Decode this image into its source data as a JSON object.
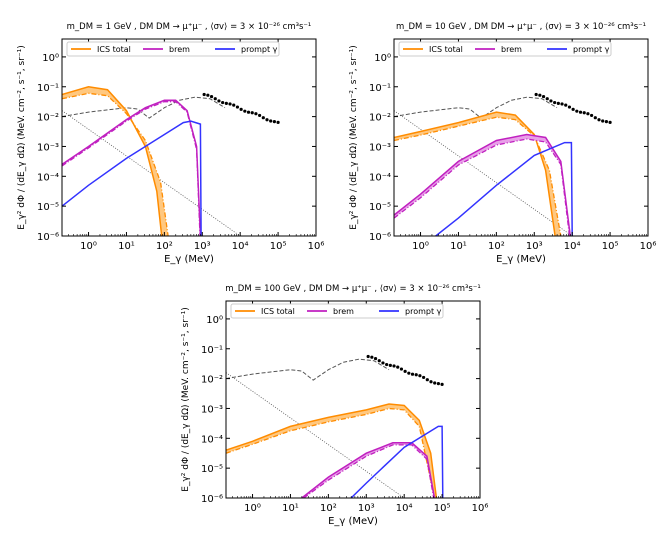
{
  "chart_data": [
    {
      "type": "line",
      "title": "m_DM = 1 GeV ,  DM DM → μ⁺μ⁻ ,  ⟨σv⟩ = 3 × 10⁻²⁶ cm³s⁻¹",
      "xlabel": "E_γ (MeV)",
      "ylabel": "E_γ² dΦ / (dE_γ dΩ) (MeV. cm⁻², s⁻¹, sr⁻¹)",
      "xscale": "log",
      "yscale": "log",
      "xlim_log10": [
        -0.7,
        6
      ],
      "ylim_log10": [
        -6,
        0.6
      ],
      "xticks": [
        "10⁰",
        "10¹",
        "10²",
        "10³",
        "10⁴",
        "10⁵",
        "10⁶"
      ],
      "yticks": [
        "10⁻⁶",
        "10⁻⁵",
        "10⁻⁴",
        "10⁻³",
        "10⁻²",
        "10⁻¹",
        "10⁰"
      ],
      "legend": {
        "placement": "top",
        "entries": [
          "ICS total",
          "brem",
          "prompt γ"
        ]
      },
      "series": [
        {
          "name": "ICS total",
          "band": true,
          "upper": [
            [
              -0.7,
              -1.26
            ],
            [
              0,
              -1
            ],
            [
              0.5,
              -1.1
            ],
            [
              1,
              -1.8
            ],
            [
              1.5,
              -3
            ],
            [
              1.8,
              -4.5
            ],
            [
              1.93,
              -6
            ]
          ],
          "lower": [
            [
              -0.7,
              -1.4
            ],
            [
              0,
              -1.22
            ],
            [
              0.5,
              -1.3
            ],
            [
              1,
              -1.9
            ],
            [
              1.5,
              -2.8
            ],
            [
              1.9,
              -4.2
            ],
            [
              2.1,
              -6
            ]
          ]
        },
        {
          "name": "brem",
          "band": true,
          "upper": [
            [
              -0.7,
              -3.6
            ],
            [
              0,
              -3.0
            ],
            [
              1,
              -2.1
            ],
            [
              1.5,
              -1.7
            ],
            [
              2,
              -1.45
            ],
            [
              2.3,
              -1.45
            ],
            [
              2.6,
              -1.8
            ],
            [
              2.85,
              -3
            ],
            [
              2.95,
              -6
            ]
          ],
          "lower": [
            [
              -0.7,
              -3.65
            ],
            [
              0,
              -3.05
            ],
            [
              1,
              -2.15
            ],
            [
              1.5,
              -1.75
            ],
            [
              2,
              -1.5
            ],
            [
              2.3,
              -1.5
            ],
            [
              2.6,
              -1.85
            ],
            [
              2.85,
              -3.1
            ],
            [
              2.94,
              -6
            ]
          ]
        },
        {
          "name": "prompt γ",
          "points": [
            [
              -0.7,
              -5
            ],
            [
              0,
              -4.3
            ],
            [
              1,
              -3.4
            ],
            [
              2,
              -2.6
            ],
            [
              2.5,
              -2.2
            ],
            [
              2.7,
              -2.15
            ],
            [
              2.95,
              -2.25
            ],
            [
              2.97,
              -6
            ]
          ]
        }
      ]
    },
    {
      "type": "line",
      "title": "m_DM = 10 GeV ,  DM DM → μ⁺μ⁻ ,  ⟨σv⟩ = 3 × 10⁻²⁶ cm³s⁻¹",
      "xlabel": "E_γ (MeV)",
      "ylabel": "E_γ² dΦ / (dE_γ dΩ) (MeV. cm⁻², s⁻¹, sr⁻¹)",
      "xscale": "log",
      "yscale": "log",
      "xlim_log10": [
        -0.7,
        6
      ],
      "ylim_log10": [
        -6,
        0.6
      ],
      "xticks": [
        "10⁰",
        "10¹",
        "10²",
        "10³",
        "10⁴",
        "10⁵",
        "10⁶"
      ],
      "yticks": [
        "10⁻⁶",
        "10⁻⁵",
        "10⁻⁴",
        "10⁻³",
        "10⁻²",
        "10⁻¹",
        "10⁰"
      ],
      "legend": {
        "placement": "top",
        "entries": [
          "ICS total",
          "brem",
          "prompt γ"
        ]
      },
      "series": [
        {
          "name": "ICS total",
          "band": true,
          "upper": [
            [
              -0.7,
              -2.7
            ],
            [
              0,
              -2.5
            ],
            [
              1,
              -2.2
            ],
            [
              2,
              -1.85
            ],
            [
              2.5,
              -1.95
            ],
            [
              3,
              -2.6
            ],
            [
              3.3,
              -3.8
            ],
            [
              3.55,
              -6
            ]
          ],
          "lower": [
            [
              -0.7,
              -2.8
            ],
            [
              0,
              -2.62
            ],
            [
              1,
              -2.32
            ],
            [
              2,
              -2.02
            ],
            [
              2.5,
              -2.1
            ],
            [
              3,
              -2.65
            ],
            [
              3.4,
              -3.8
            ],
            [
              3.7,
              -6
            ]
          ]
        },
        {
          "name": "brem",
          "band": true,
          "upper": [
            [
              -0.7,
              -5.3
            ],
            [
              0,
              -4.6
            ],
            [
              1,
              -3.5
            ],
            [
              2,
              -2.8
            ],
            [
              2.8,
              -2.6
            ],
            [
              3.3,
              -2.7
            ],
            [
              3.7,
              -3.5
            ],
            [
              3.95,
              -6
            ]
          ],
          "lower": [
            [
              -0.7,
              -5.4
            ],
            [
              0,
              -4.72
            ],
            [
              1,
              -3.62
            ],
            [
              2,
              -2.95
            ],
            [
              2.8,
              -2.75
            ],
            [
              3.3,
              -2.85
            ],
            [
              3.7,
              -3.6
            ],
            [
              3.93,
              -6
            ]
          ]
        },
        {
          "name": "prompt γ",
          "points": [
            [
              0.4,
              -6
            ],
            [
              1,
              -5.4
            ],
            [
              2,
              -4.3
            ],
            [
              3,
              -3.3
            ],
            [
              3.8,
              -2.87
            ],
            [
              3.98,
              -2.87
            ],
            [
              4,
              -6
            ]
          ]
        }
      ]
    },
    {
      "type": "line",
      "title": "m_DM = 100 GeV ,  DM DM → μ⁺μ⁻ ,  ⟨σv⟩ = 3 × 10⁻²⁶ cm³s⁻¹",
      "xlabel": "E_γ (MeV)",
      "ylabel": "E_γ² dΦ / (dE_γ dΩ) (MeV. cm⁻², s⁻¹, sr⁻¹)",
      "xscale": "log",
      "yscale": "log",
      "xlim_log10": [
        -0.7,
        6
      ],
      "ylim_log10": [
        -6,
        0.6
      ],
      "xticks": [
        "10⁰",
        "10¹",
        "10²",
        "10³",
        "10⁴",
        "10⁵",
        "10⁶"
      ],
      "yticks": [
        "10⁻⁶",
        "10⁻⁵",
        "10⁻⁴",
        "10⁻³",
        "10⁻²",
        "10⁻¹",
        "10⁰"
      ],
      "legend": {
        "placement": "top",
        "entries": [
          "ICS total",
          "brem",
          "prompt γ"
        ]
      },
      "series": [
        {
          "name": "ICS total",
          "band": true,
          "upper": [
            [
              -0.7,
              -4.4
            ],
            [
              0,
              -4.1
            ],
            [
              1,
              -3.6
            ],
            [
              2,
              -3.3
            ],
            [
              3,
              -3.05
            ],
            [
              3.6,
              -2.85
            ],
            [
              4,
              -2.9
            ],
            [
              4.4,
              -3.4
            ],
            [
              4.7,
              -4.5
            ],
            [
              4.85,
              -6
            ]
          ],
          "lower": [
            [
              -0.7,
              -4.5
            ],
            [
              0,
              -4.2
            ],
            [
              1,
              -3.75
            ],
            [
              2,
              -3.45
            ],
            [
              3,
              -3.2
            ],
            [
              3.6,
              -3.0
            ],
            [
              4,
              -3.05
            ],
            [
              4.4,
              -3.6
            ],
            [
              4.8,
              -6
            ]
          ]
        },
        {
          "name": "brem",
          "band": true,
          "upper": [
            [
              1.3,
              -6
            ],
            [
              2,
              -5.3
            ],
            [
              3,
              -4.5
            ],
            [
              3.7,
              -4.15
            ],
            [
              4.2,
              -4.15
            ],
            [
              4.6,
              -4.6
            ],
            [
              4.8,
              -6
            ]
          ],
          "lower": [
            [
              1.35,
              -6
            ],
            [
              2,
              -5.4
            ],
            [
              3,
              -4.6
            ],
            [
              3.7,
              -4.22
            ],
            [
              4.2,
              -4.22
            ],
            [
              4.6,
              -4.7
            ],
            [
              4.78,
              -6
            ]
          ]
        },
        {
          "name": "prompt γ",
          "points": [
            [
              2.6,
              -6
            ],
            [
              3,
              -5.5
            ],
            [
              4,
              -4.3
            ],
            [
              4.9,
              -3.6
            ],
            [
              5,
              -3.6
            ],
            [
              5.02,
              -6
            ]
          ]
        }
      ]
    }
  ],
  "shared": {
    "background_dashed": [
      [
        -0.7,
        -2.0
      ],
      [
        0,
        -1.85
      ],
      [
        1,
        -1.7
      ],
      [
        1.3,
        -1.75
      ],
      [
        1.6,
        -2.05
      ],
      [
        2,
        -1.7
      ],
      [
        2.4,
        -1.45
      ],
      [
        2.8,
        -1.35
      ],
      [
        3.2,
        -1.4
      ],
      [
        3.6,
        -1.7
      ]
    ],
    "background_dotted": [
      [
        -0.7,
        -1.8
      ],
      [
        4,
        -6
      ]
    ],
    "data_points_log10": {
      "x_from": 3.05,
      "x_to": 5,
      "y_from": -1.26,
      "y_to": -2.22,
      "count": 21
    }
  },
  "colors": {
    "ics": "#ff8c00",
    "ics_band": "#ffc880",
    "brem": "#c020c0",
    "brem_band": "#e8a0e8",
    "prompt": "#3333ff",
    "bg": "#555555"
  }
}
